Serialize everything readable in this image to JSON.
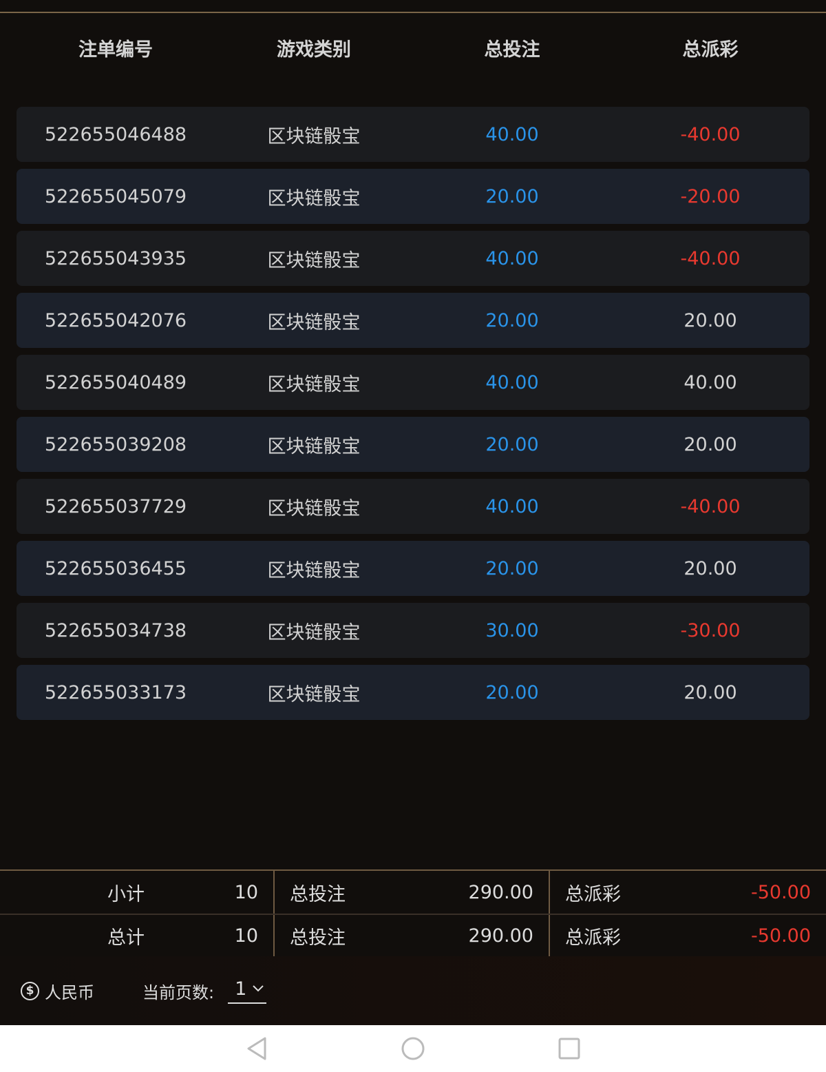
{
  "table": {
    "headers": [
      "注单编号",
      "游戏类别",
      "总投注",
      "总派彩"
    ],
    "rows": [
      {
        "id": "522655046488",
        "game": "区块链骰宝",
        "bet": "40.00",
        "payout": "-40.00"
      },
      {
        "id": "522655045079",
        "game": "区块链骰宝",
        "bet": "20.00",
        "payout": "-20.00"
      },
      {
        "id": "522655043935",
        "game": "区块链骰宝",
        "bet": "40.00",
        "payout": "-40.00"
      },
      {
        "id": "522655042076",
        "game": "区块链骰宝",
        "bet": "20.00",
        "payout": "20.00"
      },
      {
        "id": "522655040489",
        "game": "区块链骰宝",
        "bet": "40.00",
        "payout": "40.00"
      },
      {
        "id": "522655039208",
        "game": "区块链骰宝",
        "bet": "20.00",
        "payout": "20.00"
      },
      {
        "id": "522655037729",
        "game": "区块链骰宝",
        "bet": "40.00",
        "payout": "-40.00"
      },
      {
        "id": "522655036455",
        "game": "区块链骰宝",
        "bet": "20.00",
        "payout": "20.00"
      },
      {
        "id": "522655034738",
        "game": "区块链骰宝",
        "bet": "30.00",
        "payout": "-30.00"
      },
      {
        "id": "522655033173",
        "game": "区块链骰宝",
        "bet": "20.00",
        "payout": "20.00"
      }
    ]
  },
  "summary": [
    {
      "label": "小计",
      "count": "10",
      "bet_label": "总投注",
      "bet": "290.00",
      "payout_label": "总派彩",
      "payout": "-50.00"
    },
    {
      "label": "总计",
      "count": "10",
      "bet_label": "总投注",
      "bet": "290.00",
      "payout_label": "总派彩",
      "payout": "-50.00"
    }
  ],
  "footer": {
    "currency": "人民币",
    "currency_icon": "$",
    "page_label": "当前页数:",
    "page_value": "1"
  },
  "colors": {
    "bet": "#2a93e8",
    "negative": "#e8392f",
    "border": "#6e5a42"
  }
}
